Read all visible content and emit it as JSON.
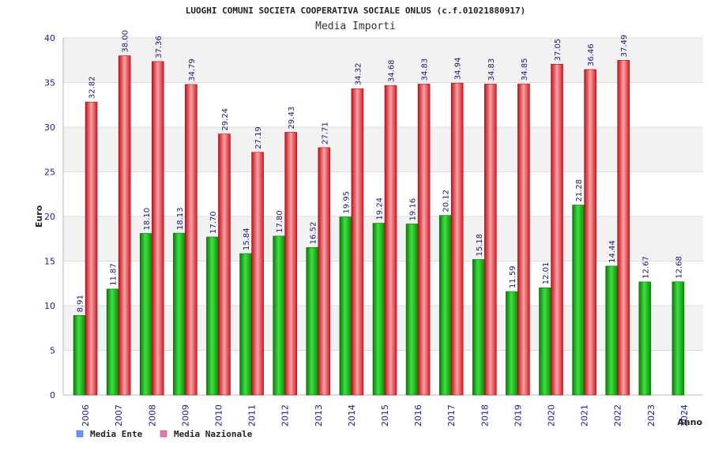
{
  "chart_data": {
    "type": "bar",
    "title": "LUOGHI COMUNI SOCIETA COOPERATIVA SOCIALE ONLUS (c.f.01021880917)",
    "subtitle": "Media Importi",
    "xlabel": "Anno",
    "ylabel": "Euro",
    "ylim": [
      0,
      40
    ],
    "yticks": [
      "0",
      "5",
      "10",
      "15",
      "20",
      "25",
      "30",
      "35",
      "40"
    ],
    "grid": true,
    "legend_position": "bottom-left",
    "categories": [
      "2006",
      "2007",
      "2008",
      "2009",
      "2010",
      "2011",
      "2012",
      "2013",
      "2014",
      "2015",
      "2016",
      "2017",
      "2018",
      "2019",
      "2020",
      "2021",
      "2022",
      "2023",
      "2024"
    ],
    "series": [
      {
        "name": "Media Ente",
        "color": "#1fb21f",
        "legend_color": "#6699ee",
        "values": [
          8.91,
          11.87,
          18.1,
          18.13,
          17.7,
          15.84,
          17.8,
          16.52,
          19.95,
          19.24,
          19.16,
          20.12,
          15.18,
          11.59,
          12.01,
          21.28,
          14.44,
          12.67,
          12.68
        ],
        "labels": [
          "8.91",
          "11.87",
          "18.10",
          "18.13",
          "17.70",
          "15.84",
          "17.80",
          "16.52",
          "19.95",
          "19.24",
          "19.16",
          "20.12",
          "15.18",
          "11.59",
          "12.01",
          "21.28",
          "14.44",
          "12.67",
          "12.68"
        ]
      },
      {
        "name": "Media Nazionale",
        "color": "#e8333a",
        "legend_color": "#e07ab0",
        "values": [
          32.82,
          38.0,
          37.36,
          34.79,
          29.24,
          27.19,
          29.43,
          27.71,
          34.32,
          34.68,
          34.83,
          34.94,
          34.83,
          34.85,
          37.05,
          36.46,
          37.49,
          null,
          null
        ],
        "labels": [
          "32.82",
          "38.00",
          "37.36",
          "34.79",
          "29.24",
          "27.19",
          "29.43",
          "27.71",
          "34.32",
          "34.68",
          "34.83",
          "34.94",
          "34.83",
          "34.85",
          "37.05",
          "36.46",
          "37.49",
          "",
          ""
        ]
      }
    ]
  }
}
